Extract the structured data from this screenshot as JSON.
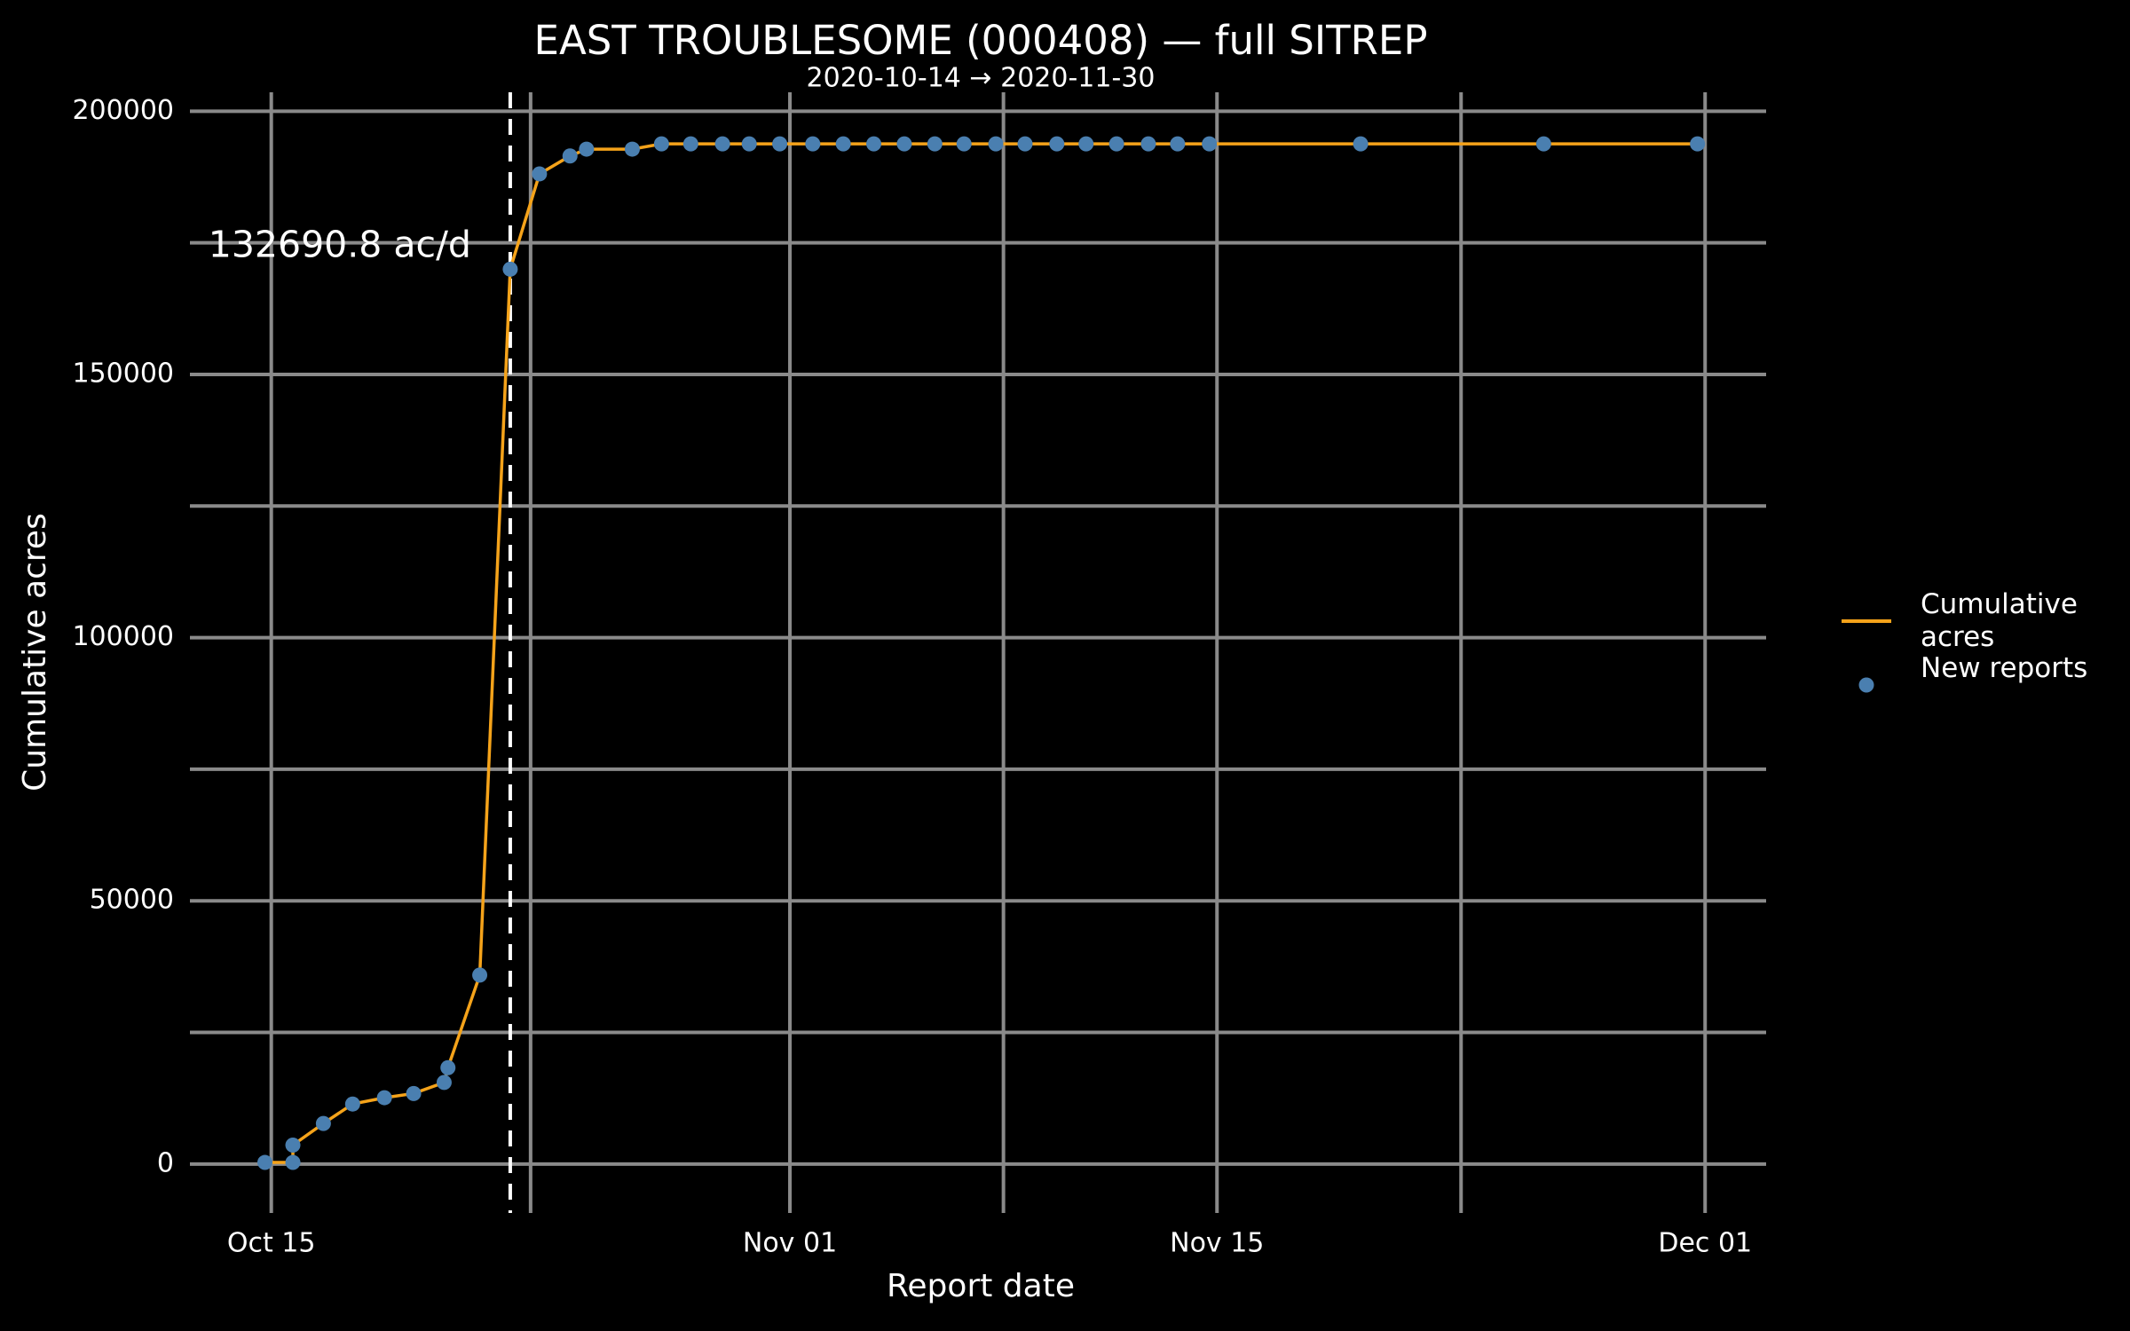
{
  "chart_data": {
    "type": "line",
    "title": "EAST TROUBLESOME (000408) — full SITREP",
    "subtitle": "2020-10-14 → 2020-11-30",
    "x_label": "Report date",
    "y_label": "Cumulative acres",
    "x": [
      "2020-10-14T19:00",
      "2020-10-15T17:00",
      "2020-10-15T17:00",
      "2020-10-16T17:00",
      "2020-10-17T16:00",
      "2020-10-18T17:00",
      "2020-10-19T16:00",
      "2020-10-20T16:00",
      "2020-10-20T19:00",
      "2020-10-21T20:00",
      "2020-10-22T20:00",
      "2020-10-23T19:00",
      "2020-10-24T19:00",
      "2020-10-25T08:00",
      "2020-10-26T20:00",
      "2020-10-27T19:00",
      "2020-10-28T18:00",
      "2020-10-29T19:00",
      "2020-10-30T16:00",
      "2020-10-31T16:00",
      "2020-11-01T18:00",
      "2020-11-02T18:00",
      "2020-11-03T18:00",
      "2020-11-04T18:00",
      "2020-11-05T18:00",
      "2020-11-06T17:00",
      "2020-11-07T18:00",
      "2020-11-08T17:00",
      "2020-11-09T18:00",
      "2020-11-10T17:00",
      "2020-11-11T17:00",
      "2020-11-12T18:00",
      "2020-11-13T17:00",
      "2020-11-14T18:00",
      "2020-11-19T17:00",
      "2020-11-25T17:00",
      "2020-11-30T18:00"
    ],
    "series": [
      {
        "name": "Cumulative acres",
        "color": "#f5a31a",
        "mark": "line",
        "values": [
          300,
          300,
          3600,
          7700,
          11400,
          12600,
          13400,
          15500,
          18300,
          35900,
          170000,
          188100,
          191500,
          192800,
          192800,
          193800,
          193800,
          193800,
          193800,
          193800,
          193800,
          193800,
          193800,
          193800,
          193800,
          193800,
          193800,
          193800,
          193800,
          193800,
          193800,
          193800,
          193800,
          193800,
          193800,
          193800,
          193800
        ]
      },
      {
        "name": "New reports",
        "color": "#4a7fb0",
        "mark": "point",
        "values": [
          300,
          3600,
          300,
          7700,
          11400,
          12600,
          13400,
          15500,
          18300,
          35900,
          170000,
          188100,
          191500,
          192800,
          192800,
          193800,
          193800,
          193800,
          193800,
          193800,
          193800,
          193800,
          193800,
          193800,
          193800,
          193800,
          193800,
          193800,
          193800,
          193800,
          193800,
          193800,
          193800,
          193800,
          193800,
          193800,
          193800
        ]
      }
    ],
    "xlim": [
      "2020-10-12T08:00",
      "2020-12-03T00:00"
    ],
    "xticks": [
      {
        "value": "2020-10-15T00:00",
        "label": "Oct 15"
      },
      {
        "value": "2020-11-01T00:00",
        "label": "Nov 01"
      },
      {
        "value": "2020-11-15T00:00",
        "label": "Nov 15"
      },
      {
        "value": "2020-12-01T00:00",
        "label": "Dec 01"
      }
    ],
    "xminorticks": [
      "2020-10-23T12:00",
      "2020-11-08T00:00",
      "2020-11-23T00:00"
    ],
    "ylim": [
      -9300,
      203600
    ],
    "yticks": [
      0,
      50000,
      100000,
      150000,
      200000
    ],
    "yminorticks": [
      25000,
      75000,
      125000,
      175000
    ],
    "grid": true,
    "vline": "2020-10-22T20:00",
    "annotation": {
      "text": "132690.8 ac/d",
      "y": 174200
    },
    "legend": "right"
  }
}
